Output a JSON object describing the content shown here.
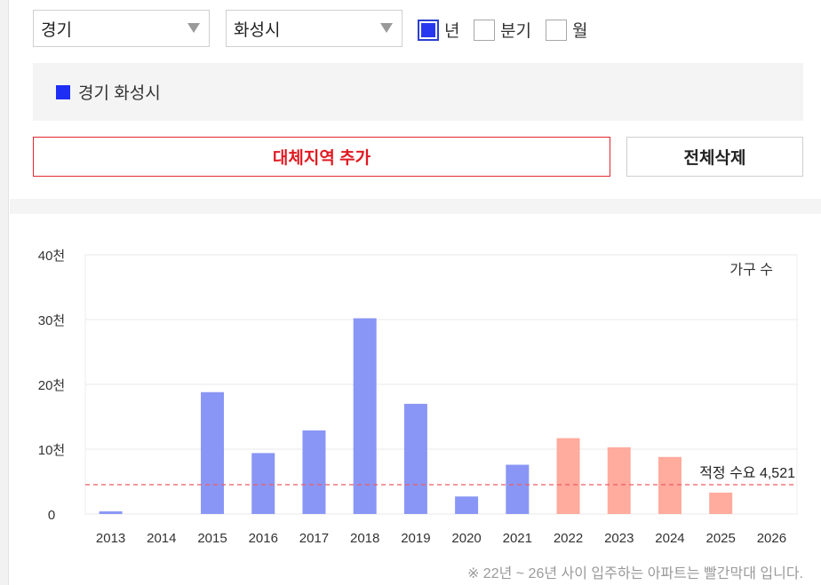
{
  "filters": {
    "province": "경기",
    "city": "화성시",
    "periods": [
      {
        "label": "년",
        "checked": true
      },
      {
        "label": "분기",
        "checked": false
      },
      {
        "label": "월",
        "checked": false
      }
    ]
  },
  "legend": {
    "label": "경기 화성시",
    "color": "#1e2ef5"
  },
  "buttons": {
    "add_region": "대체지역 추가",
    "clear_all": "전체삭제"
  },
  "chart_data": {
    "type": "bar",
    "unit_label": "가구 수",
    "categories": [
      "2013",
      "2014",
      "2015",
      "2016",
      "2017",
      "2018",
      "2019",
      "2020",
      "2021",
      "2022",
      "2023",
      "2024",
      "2025",
      "2026"
    ],
    "values": [
      400,
      0,
      18800,
      9400,
      12900,
      30200,
      17000,
      2700,
      7600,
      11700,
      10300,
      8800,
      3300,
      0
    ],
    "ylim": [
      0,
      40000
    ],
    "y_ticks": [
      {
        "value": 0,
        "label": "0"
      },
      {
        "value": 10000,
        "label": "10천"
      },
      {
        "value": 20000,
        "label": "20천"
      },
      {
        "value": 30000,
        "label": "30천"
      },
      {
        "value": 40000,
        "label": "40천"
      }
    ],
    "reference_line": {
      "value": 4521,
      "label": "적정 수요 4,521",
      "color": "#ef5a63"
    },
    "colors": {
      "past": "#8a96f5",
      "future": "#ffab9d"
    },
    "future_from": "2022",
    "grid": true
  },
  "footnote": "※ 22년 ~ 26년 사이 입주하는 아파트는 빨간막대 입니다."
}
